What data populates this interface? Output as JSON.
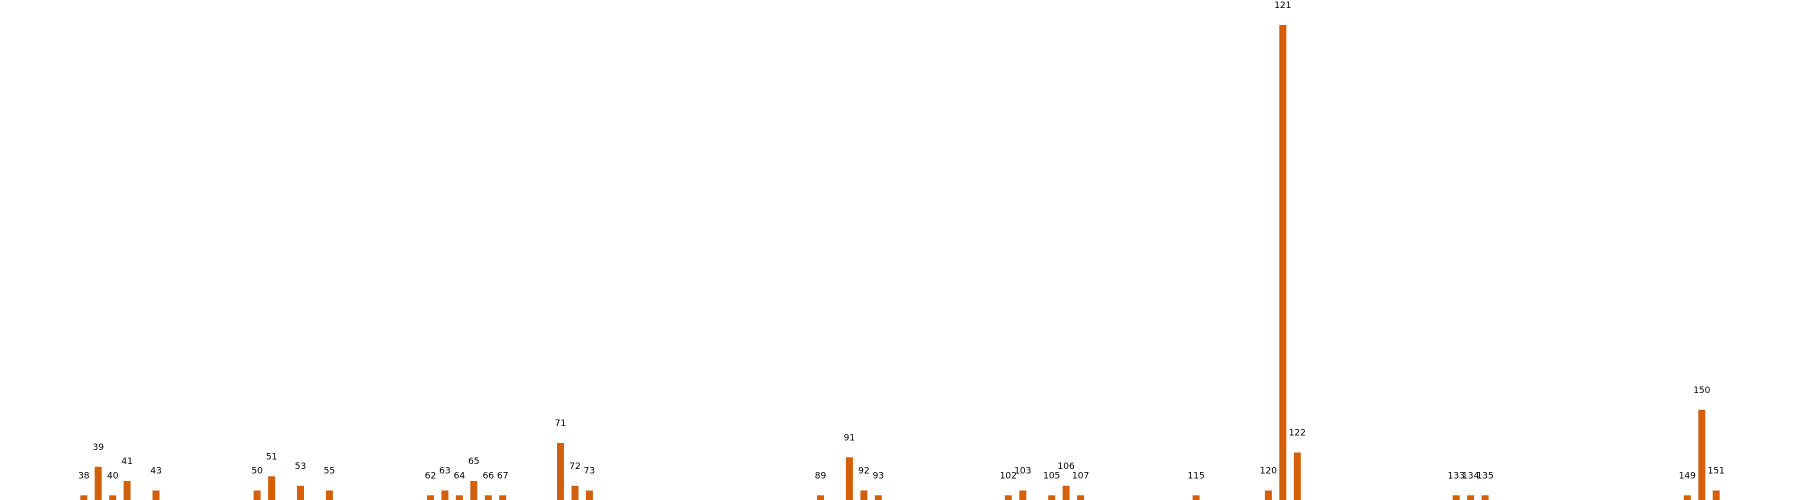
{
  "chart_data": {
    "type": "bar",
    "title": "",
    "xlabel": "",
    "ylabel": "",
    "color": "#d35f0a",
    "xlim": [
      32.2,
      156.8
    ],
    "ylim": [
      0,
      100
    ],
    "grid": false,
    "points": [
      {
        "x": 38,
        "label": "38",
        "value": 1
      },
      {
        "x": 39,
        "label": "39",
        "value": 7
      },
      {
        "x": 40,
        "label": "40",
        "value": 1
      },
      {
        "x": 41,
        "label": "41",
        "value": 4
      },
      {
        "x": 43,
        "label": "43",
        "value": 2
      },
      {
        "x": 50,
        "label": "50",
        "value": 2
      },
      {
        "x": 51,
        "label": "51",
        "value": 5
      },
      {
        "x": 53,
        "label": "53",
        "value": 3
      },
      {
        "x": 55,
        "label": "55",
        "value": 2
      },
      {
        "x": 62,
        "label": "62",
        "value": 1
      },
      {
        "x": 63,
        "label": "63",
        "value": 2
      },
      {
        "x": 64,
        "label": "64",
        "value": 1
      },
      {
        "x": 65,
        "label": "65",
        "value": 4
      },
      {
        "x": 66,
        "label": "66",
        "value": 1
      },
      {
        "x": 67,
        "label": "67",
        "value": 1
      },
      {
        "x": 71,
        "label": "71",
        "value": 12
      },
      {
        "x": 72,
        "label": "72",
        "value": 3
      },
      {
        "x": 73,
        "label": "73",
        "value": 2
      },
      {
        "x": 89,
        "label": "89",
        "value": 1
      },
      {
        "x": 91,
        "label": "91",
        "value": 9
      },
      {
        "x": 92,
        "label": "92",
        "value": 2
      },
      {
        "x": 93,
        "label": "93",
        "value": 1
      },
      {
        "x": 102,
        "label": "102",
        "value": 1
      },
      {
        "x": 103,
        "label": "103",
        "value": 2
      },
      {
        "x": 105,
        "label": "105",
        "value": 1
      },
      {
        "x": 106,
        "label": "106",
        "value": 3
      },
      {
        "x": 107,
        "label": "107",
        "value": 1
      },
      {
        "x": 115,
        "label": "115",
        "value": 1
      },
      {
        "x": 120,
        "label": "120",
        "value": 2
      },
      {
        "x": 121,
        "label": "121",
        "value": 100
      },
      {
        "x": 122,
        "label": "122",
        "value": 10
      },
      {
        "x": 133,
        "label": "133",
        "value": 1
      },
      {
        "x": 134,
        "label": "134",
        "value": 1
      },
      {
        "x": 135,
        "label": "135",
        "value": 1
      },
      {
        "x": 149,
        "label": "149",
        "value": 1
      },
      {
        "x": 150,
        "label": "150",
        "value": 19
      },
      {
        "x": 151,
        "label": "151",
        "value": 2
      }
    ]
  }
}
